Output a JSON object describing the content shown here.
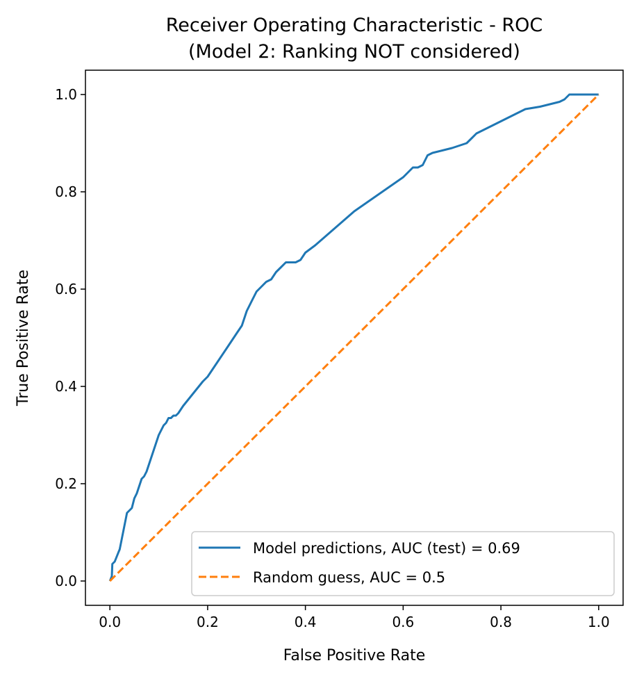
{
  "chart_data": {
    "type": "line",
    "title": "Receiver Operating Characteristic - ROC\n(Model 2: Ranking NOT considered)",
    "title_lines": [
      "Receiver Operating Characteristic - ROC",
      "(Model 2: Ranking NOT considered)"
    ],
    "xlabel": "False Positive Rate",
    "ylabel": "True Positive Rate",
    "xlim": [
      -0.05,
      1.05
    ],
    "ylim": [
      -0.05,
      1.05
    ],
    "xticks": [
      0.0,
      0.2,
      0.4,
      0.6,
      0.8,
      1.0
    ],
    "yticks": [
      0.0,
      0.2,
      0.4,
      0.6,
      0.8,
      1.0
    ],
    "xtick_labels": [
      "0.0",
      "0.2",
      "0.4",
      "0.6",
      "0.8",
      "1.0"
    ],
    "ytick_labels": [
      "0.0",
      "0.2",
      "0.4",
      "0.6",
      "0.8",
      "1.0"
    ],
    "grid": false,
    "legend_position": "lower-right",
    "series": [
      {
        "name": "Model predictions, AUC (test) = 0.69",
        "style": "solid",
        "color": "#1f77b4",
        "x": [
          0.0,
          0.004,
          0.005,
          0.01,
          0.012,
          0.018,
          0.02,
          0.025,
          0.03,
          0.035,
          0.04,
          0.045,
          0.05,
          0.055,
          0.06,
          0.065,
          0.07,
          0.075,
          0.08,
          0.085,
          0.09,
          0.1,
          0.11,
          0.115,
          0.12,
          0.125,
          0.13,
          0.135,
          0.14,
          0.15,
          0.17,
          0.19,
          0.2,
          0.22,
          0.24,
          0.26,
          0.27,
          0.275,
          0.28,
          0.29,
          0.3,
          0.31,
          0.32,
          0.33,
          0.34,
          0.35,
          0.36,
          0.37,
          0.38,
          0.39,
          0.4,
          0.42,
          0.5,
          0.6,
          0.61,
          0.62,
          0.63,
          0.64,
          0.65,
          0.66,
          0.68,
          0.7,
          0.73,
          0.74,
          0.75,
          0.77,
          0.8,
          0.83,
          0.85,
          0.88,
          0.9,
          0.92,
          0.93,
          0.94,
          0.96,
          1.0
        ],
        "y": [
          0.0,
          0.01,
          0.035,
          0.04,
          0.045,
          0.06,
          0.065,
          0.09,
          0.115,
          0.14,
          0.145,
          0.15,
          0.17,
          0.18,
          0.195,
          0.21,
          0.215,
          0.225,
          0.24,
          0.255,
          0.27,
          0.3,
          0.32,
          0.325,
          0.335,
          0.335,
          0.34,
          0.34,
          0.345,
          0.36,
          0.385,
          0.41,
          0.42,
          0.45,
          0.48,
          0.51,
          0.525,
          0.54,
          0.555,
          0.575,
          0.595,
          0.605,
          0.615,
          0.62,
          0.635,
          0.645,
          0.655,
          0.655,
          0.655,
          0.66,
          0.675,
          0.69,
          0.76,
          0.83,
          0.84,
          0.85,
          0.85,
          0.855,
          0.875,
          0.88,
          0.885,
          0.89,
          0.9,
          0.91,
          0.92,
          0.93,
          0.945,
          0.96,
          0.97,
          0.975,
          0.98,
          0.985,
          0.99,
          1.0,
          1.0,
          1.0
        ]
      },
      {
        "name": "Random guess, AUC = 0.5",
        "style": "dashed",
        "color": "#ff7f0e",
        "x": [
          0.0,
          1.0
        ],
        "y": [
          0.0,
          1.0
        ]
      }
    ]
  }
}
